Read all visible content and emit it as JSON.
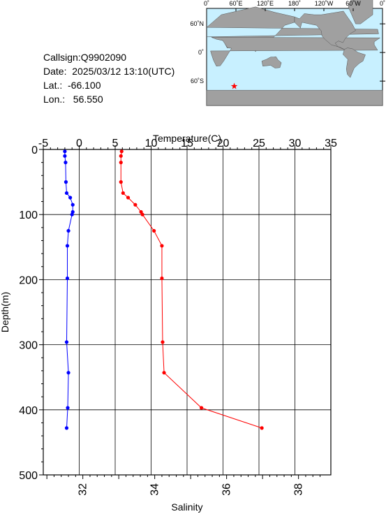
{
  "info": {
    "callsign": "Callsign:Q9902090",
    "date": "Date:  2025/03/12 13:10(UTC)",
    "lat": "Lat.:  -66.100",
    "lon": "Lon.:   56.550"
  },
  "map": {
    "top_labels": [
      "0˚",
      "60˚E",
      "120˚E",
      "180˚",
      "120˚W",
      "60˚W",
      "0˚"
    ],
    "lat_labels": [
      "60˚N",
      "0˚",
      "60˚S"
    ],
    "marker": {
      "lon": 56.55,
      "lat": -66.1
    },
    "ocean_color": "#c8f0ff",
    "land_color": "#a0a0a0",
    "marker_color": "#ff0000"
  },
  "chart_data": {
    "type": "scatter",
    "ylabel": "Depth(m)",
    "ylim": [
      0,
      500
    ],
    "y_ticks": [
      0,
      100,
      200,
      300,
      400,
      500
    ],
    "top_axis": {
      "label": "Temperature(C)",
      "range": [
        -5,
        35
      ],
      "ticks": [
        -5,
        0,
        5,
        10,
        15,
        20,
        25,
        30,
        35
      ]
    },
    "bottom_axis": {
      "label": "Salinity",
      "range": [
        30.9,
        38.9
      ],
      "ticks": [
        32,
        34,
        36,
        38
      ]
    },
    "series": [
      {
        "name": "Temperature",
        "axis": "top",
        "color": "#ff0000",
        "points": [
          {
            "x": 5.9,
            "y": 3
          },
          {
            "x": 5.8,
            "y": 10
          },
          {
            "x": 5.8,
            "y": 20
          },
          {
            "x": 5.8,
            "y": 50
          },
          {
            "x": 6.1,
            "y": 67
          },
          {
            "x": 6.8,
            "y": 74
          },
          {
            "x": 7.8,
            "y": 85
          },
          {
            "x": 8.6,
            "y": 96
          },
          {
            "x": 8.8,
            "y": 100
          },
          {
            "x": 10.4,
            "y": 125
          },
          {
            "x": 11.5,
            "y": 148
          },
          {
            "x": 11.5,
            "y": 198
          },
          {
            "x": 11.6,
            "y": 296
          },
          {
            "x": 11.8,
            "y": 343
          },
          {
            "x": 17.0,
            "y": 397
          },
          {
            "x": 25.4,
            "y": 428
          }
        ]
      },
      {
        "name": "Salinity",
        "axis": "bottom",
        "color": "#0000ff",
        "points": [
          {
            "x": 31.5,
            "y": 3
          },
          {
            "x": 31.5,
            "y": 10
          },
          {
            "x": 31.52,
            "y": 20
          },
          {
            "x": 31.53,
            "y": 50
          },
          {
            "x": 31.55,
            "y": 67
          },
          {
            "x": 31.65,
            "y": 74
          },
          {
            "x": 31.72,
            "y": 85
          },
          {
            "x": 31.72,
            "y": 96
          },
          {
            "x": 31.7,
            "y": 100
          },
          {
            "x": 31.6,
            "y": 125
          },
          {
            "x": 31.57,
            "y": 148
          },
          {
            "x": 31.57,
            "y": 198
          },
          {
            "x": 31.55,
            "y": 296
          },
          {
            "x": 31.6,
            "y": 343
          },
          {
            "x": 31.58,
            "y": 397
          },
          {
            "x": 31.55,
            "y": 428
          }
        ]
      }
    ],
    "grid": true
  }
}
